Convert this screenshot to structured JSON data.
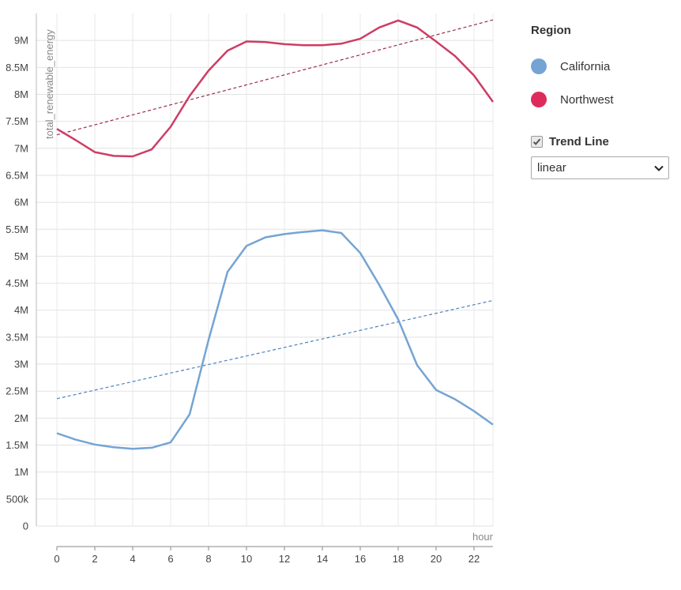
{
  "chart_data": {
    "type": "line",
    "xlabel": "hour",
    "ylabel": "total_renewable_energy",
    "xlim": [
      0,
      23
    ],
    "ylim": [
      0,
      9500000
    ],
    "x_ticks": [
      0,
      2,
      4,
      6,
      8,
      10,
      12,
      14,
      16,
      18,
      20,
      22
    ],
    "x_tick_labels": [
      "0",
      "2",
      "4",
      "6",
      "8",
      "10",
      "12",
      "14",
      "16",
      "18",
      "20",
      "22"
    ],
    "y_ticks": [
      0,
      500000,
      1000000,
      1500000,
      2000000,
      2500000,
      3000000,
      3500000,
      4000000,
      4500000,
      5000000,
      5500000,
      6000000,
      6500000,
      7000000,
      7500000,
      8000000,
      8500000,
      9000000
    ],
    "y_tick_labels": [
      "0",
      "500k",
      "1M",
      "1.5M",
      "2M",
      "2.5M",
      "3M",
      "3.5M",
      "4M",
      "4.5M",
      "5M",
      "5.5M",
      "6M",
      "6.5M",
      "7M",
      "7.5M",
      "8M",
      "8.5M",
      "9M"
    ],
    "grid": true,
    "legend_position": "right",
    "x": [
      0,
      1,
      2,
      3,
      4,
      5,
      6,
      7,
      8,
      9,
      10,
      11,
      12,
      13,
      14,
      15,
      16,
      17,
      18,
      19,
      20,
      21,
      22,
      23
    ],
    "series": [
      {
        "name": "California",
        "color": "#75a4d4",
        "values": [
          1720000,
          1600000,
          1510000,
          1460000,
          1430000,
          1450000,
          1550000,
          2070000,
          3450000,
          4710000,
          5190000,
          5350000,
          5410000,
          5450000,
          5480000,
          5430000,
          5060000,
          4470000,
          3830000,
          2980000,
          2520000,
          2350000,
          2130000,
          1880000
        ],
        "trend": {
          "type": "linear",
          "start": [
            0,
            2360000
          ],
          "end": [
            23,
            4180000
          ],
          "color": "#4f81bd"
        }
      },
      {
        "name": "Northwest",
        "color": "#cd3d64",
        "values": [
          7360000,
          7150000,
          6930000,
          6860000,
          6850000,
          6980000,
          7400000,
          7970000,
          8440000,
          8810000,
          8980000,
          8970000,
          8930000,
          8910000,
          8910000,
          8940000,
          9030000,
          9240000,
          9370000,
          9240000,
          8980000,
          8710000,
          8350000,
          7860000
        ],
        "trend": {
          "type": "linear",
          "start": [
            0,
            7250000
          ],
          "end": [
            23,
            9380000
          ],
          "color": "#9c2c4c"
        }
      }
    ]
  },
  "legend": {
    "title": "Region",
    "items": [
      {
        "label": "California",
        "color": "#75a4d4"
      },
      {
        "label": "Northwest",
        "color": "#dd2c5b"
      }
    ]
  },
  "trend_control": {
    "label": "Trend Line",
    "checked": true,
    "selected": "linear"
  }
}
